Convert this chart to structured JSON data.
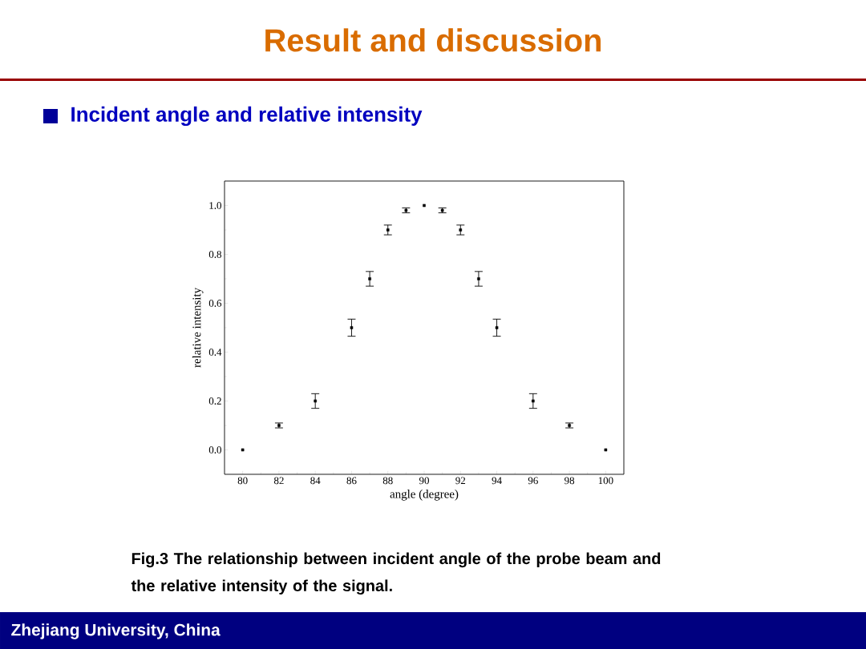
{
  "chart_data": {
    "type": "scatter",
    "title": "Result and discussion",
    "subtitle": "Incident angle and relative intensity",
    "xlabel": "angle (degree)",
    "ylabel": "relative intensity",
    "x": [
      80,
      82,
      84,
      86,
      87,
      88,
      89,
      90,
      91,
      92,
      93,
      94,
      96,
      98,
      100
    ],
    "values": [
      0,
      0.1,
      0.2,
      0.5,
      0.7,
      0.9,
      0.98,
      1.0,
      0.98,
      0.9,
      0.7,
      0.5,
      0.2,
      0.1,
      0
    ],
    "errors": [
      null,
      0.01,
      0.03,
      0.035,
      0.03,
      0.02,
      0.01,
      null,
      0.01,
      0.02,
      0.03,
      0.035,
      0.03,
      0.01,
      null
    ],
    "color": "#000000",
    "marker": "square",
    "xlim": [
      79,
      101
    ],
    "ylim": [
      -0.1,
      1.1
    ],
    "xticks": [
      80,
      82,
      84,
      86,
      88,
      90,
      92,
      94,
      96,
      98,
      100
    ],
    "yticks": [
      {
        "value": 0,
        "label": "0.0"
      },
      {
        "value": 0.2,
        "label": "0.2"
      },
      {
        "value": 0.4,
        "label": "0.4"
      },
      {
        "value": 0.6,
        "label": "0.6"
      },
      {
        "value": 0.8,
        "label": "0.8"
      },
      {
        "value": 1.0,
        "label": "1.0"
      }
    ],
    "annotations": [
      "Fig.3 The relationship between incident angle of the probe beam and the relative intensity of the signal.",
      "Zhejiang University, China"
    ]
  }
}
